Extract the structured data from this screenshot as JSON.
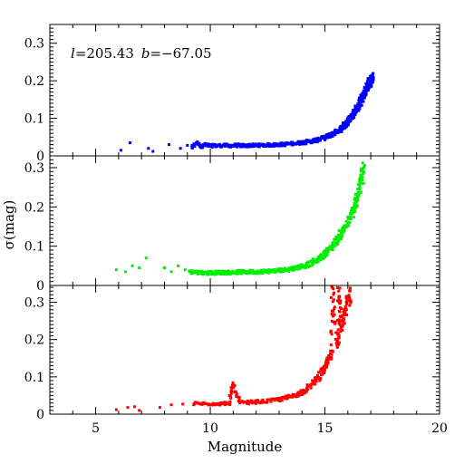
{
  "chart_data": [
    {
      "type": "scatter",
      "panel": "top",
      "annotation": "l=205.43  b=−67.05",
      "annotation_l": "l",
      "annotation_lval": "=205.43",
      "annotation_b": "b",
      "annotation_bval": "=−67.05",
      "xlim": [
        3,
        20
      ],
      "ylim": [
        0,
        0.35
      ],
      "yticks": [
        0,
        0.1,
        0.2,
        0.3
      ],
      "ytick_labels": [
        "0",
        "0.1",
        "0.2",
        "0.3"
      ],
      "color": "#0000ff",
      "series": [
        {
          "x": [
            6.1,
            6.5,
            7.3,
            7.5,
            8.2,
            8.7,
            9.0,
            9.2,
            9.4,
            9.6,
            9.8,
            10.0,
            10.3,
            10.6,
            10.9,
            11.2,
            11.5,
            11.8,
            12.1,
            12.4,
            12.7,
            13.0,
            13.3,
            13.6,
            13.9,
            14.2,
            14.5,
            14.7,
            14.9,
            15.1,
            15.3,
            15.5,
            15.7,
            15.8,
            15.9,
            16.0,
            16.1,
            16.2,
            16.3,
            16.4,
            16.5,
            16.6,
            16.7,
            16.8,
            16.9,
            17.0,
            17.1
          ],
          "y": [
            0.015,
            0.035,
            0.02,
            0.012,
            0.03,
            0.02,
            0.028,
            0.022,
            0.035,
            0.025,
            0.03,
            0.027,
            0.027,
            0.028,
            0.027,
            0.028,
            0.027,
            0.028,
            0.028,
            0.029,
            0.029,
            0.03,
            0.031,
            0.033,
            0.035,
            0.037,
            0.04,
            0.043,
            0.047,
            0.052,
            0.058,
            0.065,
            0.072,
            0.078,
            0.085,
            0.092,
            0.1,
            0.108,
            0.117,
            0.127,
            0.138,
            0.15,
            0.162,
            0.175,
            0.188,
            0.2,
            0.21
          ]
        }
      ]
    },
    {
      "type": "scatter",
      "panel": "middle",
      "ylabel": "σ(mag)",
      "xlim": [
        3,
        20
      ],
      "ylim": [
        0,
        0.33
      ],
      "yticks": [
        0,
        0.1,
        0.2,
        0.3
      ],
      "ytick_labels": [
        "0",
        "0.1",
        "0.2",
        "0.3"
      ],
      "color": "#00ee00",
      "series": [
        {
          "x": [
            5.9,
            6.3,
            6.6,
            6.9,
            7.2,
            8.0,
            8.3,
            8.6,
            8.9,
            9.1,
            9.4,
            9.7,
            10.0,
            10.3,
            10.6,
            10.9,
            11.2,
            11.5,
            11.8,
            12.1,
            12.4,
            12.7,
            13.0,
            13.3,
            13.6,
            13.9,
            14.2,
            14.5,
            14.8,
            15.0,
            15.2,
            15.4,
            15.6,
            15.8,
            16.0,
            16.2,
            16.3,
            16.4,
            16.5,
            16.6,
            16.7
          ],
          "y": [
            0.04,
            0.035,
            0.05,
            0.045,
            0.07,
            0.045,
            0.035,
            0.05,
            0.04,
            0.035,
            0.033,
            0.032,
            0.032,
            0.033,
            0.033,
            0.033,
            0.034,
            0.034,
            0.035,
            0.035,
            0.036,
            0.037,
            0.038,
            0.04,
            0.043,
            0.047,
            0.052,
            0.06,
            0.07,
            0.08,
            0.092,
            0.106,
            0.122,
            0.14,
            0.16,
            0.185,
            0.2,
            0.22,
            0.245,
            0.27,
            0.3
          ]
        }
      ]
    },
    {
      "type": "scatter",
      "panel": "bottom",
      "xlabel": "Magnitude",
      "xlim": [
        3,
        20
      ],
      "ylim": [
        0,
        0.345
      ],
      "xticks": [
        5,
        10,
        15,
        20
      ],
      "xtick_labels": [
        "5",
        "10",
        "15",
        "20"
      ],
      "yticks": [
        0,
        0.1,
        0.2,
        0.3
      ],
      "ytick_labels": [
        "0",
        "0.1",
        "0.2",
        "0.3"
      ],
      "color": "#ff0000",
      "series": [
        {
          "x": [
            5.9,
            6.4,
            6.7,
            6.9,
            7.8,
            8.3,
            8.8,
            9.3,
            9.8,
            10.3,
            10.8,
            11.0,
            11.3,
            11.8,
            12.3,
            12.8,
            13.3,
            13.8,
            14.1,
            14.4,
            14.7,
            14.9,
            15.1,
            15.3,
            15.5,
            15.6,
            15.7,
            15.8,
            15.9,
            16.0,
            16.1,
            15.3,
            15.6
          ],
          "y": [
            0.012,
            0.018,
            0.02,
            0.01,
            0.018,
            0.025,
            0.027,
            0.028,
            0.028,
            0.028,
            0.029,
            0.08,
            0.03,
            0.032,
            0.034,
            0.037,
            0.043,
            0.053,
            0.063,
            0.078,
            0.098,
            0.115,
            0.135,
            0.16,
            0.19,
            0.21,
            0.23,
            0.255,
            0.28,
            0.305,
            0.33,
            0.34,
            0.33
          ]
        }
      ]
    }
  ]
}
